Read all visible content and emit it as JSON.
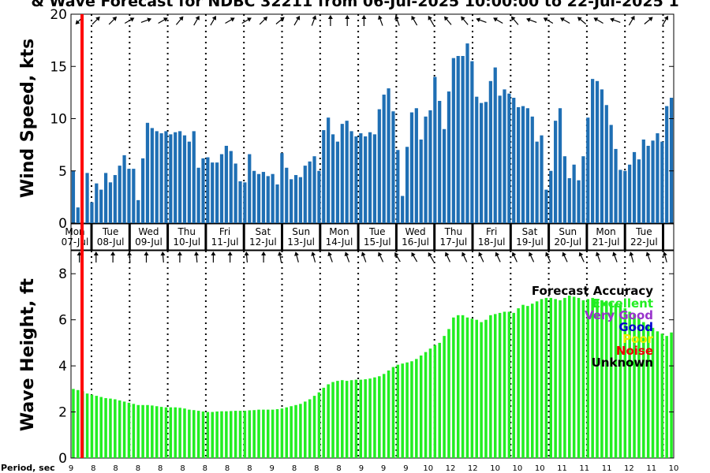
{
  "title": "& Wave Forecast for NDBC 32211 from 06-Jul-2025 10:00:00 to 22-Jul-2025 1",
  "chart_data": [
    {
      "type": "bar",
      "name": "wind",
      "ylabel": "Wind Speed, kts",
      "ylim": [
        0,
        20
      ],
      "yticks": [
        0,
        5,
        10,
        15,
        20
      ],
      "color": "#1f6fb4",
      "values": [
        5.0,
        1.5,
        0,
        4.8,
        2.0,
        3.8,
        3.2,
        4.8,
        3.9,
        4.6,
        5.5,
        6.5,
        5.2,
        5.2,
        2.2,
        6.2,
        9.6,
        9.1,
        8.8,
        8.6,
        8.8,
        8.5,
        8.7,
        8.8,
        8.4,
        7.8,
        8.8,
        5.3,
        6.2,
        6.3,
        5.8,
        5.8,
        6.6,
        7.4,
        6.9,
        5.7,
        4.0,
        3.9,
        6.6,
        5.0,
        4.7,
        4.9,
        4.5,
        4.7,
        3.7,
        6.7,
        5.3,
        4.2,
        4.6,
        4.4,
        5.5,
        5.9,
        6.4,
        5.0,
        8.9,
        10.1,
        8.5,
        7.8,
        9.5,
        9.8,
        8.8,
        8.3,
        8.6,
        8.3,
        8.7,
        8.5,
        10.9,
        12.3,
        12.9,
        10.7,
        7.0,
        2.6,
        7.3,
        10.6,
        11.0,
        8.0,
        10.2,
        10.8,
        14.0,
        11.7,
        9.0,
        12.6,
        15.8,
        16.0,
        16.0,
        17.2,
        15.5,
        12.1,
        11.5,
        11.6,
        13.6,
        14.9,
        12.2,
        12.8,
        12.4,
        12.0,
        11.1,
        11.2,
        11.0,
        10.2,
        7.8,
        8.4,
        3.2,
        5.0,
        9.8,
        11.0,
        6.4,
        4.3,
        5.6,
        4.1,
        6.4,
        10.1,
        13.8,
        13.6,
        12.8,
        11.3,
        9.4,
        7.1,
        5.1,
        5.0,
        5.6,
        6.8,
        6.1,
        8.0,
        7.4,
        7.9,
        8.6,
        7.8,
        11.2,
        12.0
      ]
    },
    {
      "type": "bar",
      "name": "wave",
      "ylabel": "Wave Height, ft",
      "ylim": [
        0,
        9
      ],
      "yticks": [
        0,
        2,
        4,
        6,
        8
      ],
      "color": "#22ee22",
      "values": [
        3.0,
        2.95,
        2.9,
        2.8,
        2.75,
        2.7,
        2.65,
        2.6,
        2.58,
        2.55,
        2.5,
        2.45,
        2.4,
        2.35,
        2.3,
        2.3,
        2.3,
        2.28,
        2.25,
        2.22,
        2.2,
        2.2,
        2.2,
        2.18,
        2.15,
        2.1,
        2.08,
        2.05,
        2.02,
        2.0,
        2.0,
        2.02,
        2.03,
        2.03,
        2.04,
        2.05,
        2.05,
        2.05,
        2.07,
        2.08,
        2.1,
        2.1,
        2.1,
        2.1,
        2.12,
        2.15,
        2.2,
        2.25,
        2.3,
        2.35,
        2.45,
        2.55,
        2.7,
        2.85,
        3.05,
        3.2,
        3.3,
        3.35,
        3.38,
        3.35,
        3.38,
        3.4,
        3.4,
        3.42,
        3.45,
        3.5,
        3.55,
        3.65,
        3.8,
        3.95,
        4.05,
        4.1,
        4.15,
        4.2,
        4.3,
        4.45,
        4.6,
        4.75,
        4.9,
        5.0,
        5.3,
        5.6,
        6.1,
        6.2,
        6.2,
        6.1,
        6.05,
        6.0,
        5.9,
        6.0,
        6.2,
        6.25,
        6.3,
        6.35,
        6.35,
        6.3,
        6.5,
        6.65,
        6.6,
        6.7,
        6.8,
        6.9,
        6.95,
        6.95,
        6.9,
        6.85,
        6.95,
        7.05,
        7.0,
        6.95,
        6.85,
        6.9,
        6.95,
        6.9,
        6.85,
        6.8,
        6.75,
        6.7,
        6.65,
        6.5,
        6.35,
        6.25,
        6.1,
        5.9,
        5.8,
        5.65,
        5.5,
        5.4,
        5.3,
        5.45
      ]
    }
  ],
  "days": [
    {
      "dow": "Mon",
      "date": "07-Jul"
    },
    {
      "dow": "Tue",
      "date": "08-Jul"
    },
    {
      "dow": "Wed",
      "date": "09-Jul"
    },
    {
      "dow": "Thu",
      "date": "10-Jul"
    },
    {
      "dow": "Fri",
      "date": "11-Jul"
    },
    {
      "dow": "Sat",
      "date": "12-Jul"
    },
    {
      "dow": "Sun",
      "date": "13-Jul"
    },
    {
      "dow": "Mon",
      "date": "14-Jul"
    },
    {
      "dow": "Tue",
      "date": "15-Jul"
    },
    {
      "dow": "Wed",
      "date": "16-Jul"
    },
    {
      "dow": "Thu",
      "date": "17-Jul"
    },
    {
      "dow": "Fri",
      "date": "18-Jul"
    },
    {
      "dow": "Sat",
      "date": "19-Jul"
    },
    {
      "dow": "Sun",
      "date": "20-Jul"
    },
    {
      "dow": "Mon",
      "date": "21-Jul"
    },
    {
      "dow": "Tue",
      "date": "22-Jul"
    }
  ],
  "period_label": "Period, sec",
  "periods": [
    9,
    8,
    8,
    8,
    8,
    8,
    8,
    8,
    8,
    9,
    8,
    8,
    8,
    9,
    9,
    9,
    10,
    12,
    12,
    10,
    10,
    10,
    11,
    11,
    11,
    12,
    11,
    10
  ],
  "legend": {
    "title": "Forecast Accuracy",
    "items": [
      {
        "label": "Excellent",
        "color": "#22ee22"
      },
      {
        "label": "Very Good",
        "color": "#9933cc"
      },
      {
        "label": "Good",
        "color": "#0000cc"
      },
      {
        "label": "Poor",
        "color": "#eeee00"
      },
      {
        "label": "Noise",
        "color": "#ee0000"
      },
      {
        "label": "Unknown",
        "color": "#000000"
      }
    ]
  },
  "now_marker_color": "#ff0000",
  "wind_arrows": [
    135,
    315,
    315,
    330,
    340,
    330,
    310,
    300,
    300,
    330,
    330,
    315,
    320,
    300,
    290,
    270,
    270,
    270,
    250,
    250,
    240,
    240,
    230,
    230,
    200,
    210,
    230,
    200,
    210,
    210,
    220,
    210,
    200,
    300,
    320,
    300
  ],
  "wave_arrows": [
    270,
    270,
    270,
    265,
    270,
    265,
    270,
    265,
    270,
    270,
    265,
    270,
    260,
    255,
    255,
    250,
    250,
    250,
    245,
    240,
    240,
    240,
    245,
    245,
    245,
    245,
    245,
    245,
    245,
    245,
    245,
    250,
    250,
    255,
    250,
    255
  ]
}
